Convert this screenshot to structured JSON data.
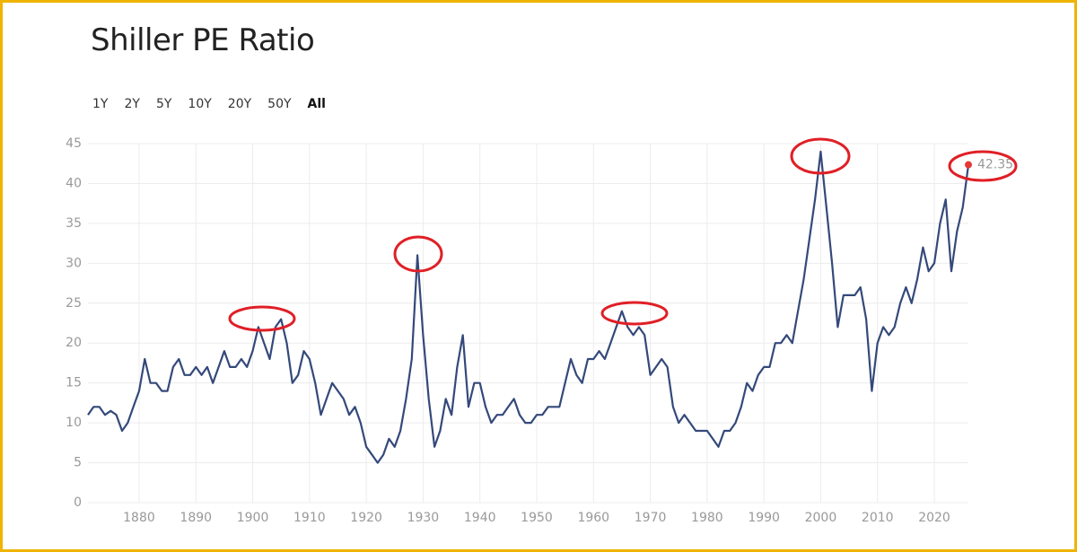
{
  "chart_data": {
    "type": "line",
    "title": "Shiller PE Ratio",
    "range_buttons": [
      "1Y",
      "2Y",
      "5Y",
      "10Y",
      "20Y",
      "50Y",
      "All"
    ],
    "selected_range": "All",
    "x": [
      1871,
      1872,
      1873,
      1874,
      1875,
      1876,
      1877,
      1878,
      1879,
      1880,
      1881,
      1882,
      1883,
      1884,
      1885,
      1886,
      1887,
      1888,
      1889,
      1890,
      1891,
      1892,
      1893,
      1894,
      1895,
      1896,
      1897,
      1898,
      1899,
      1900,
      1901,
      1902,
      1903,
      1904,
      1905,
      1906,
      1907,
      1908,
      1909,
      1910,
      1911,
      1912,
      1913,
      1914,
      1915,
      1916,
      1917,
      1918,
      1919,
      1920,
      1921,
      1922,
      1923,
      1924,
      1925,
      1926,
      1927,
      1928,
      1929,
      1930,
      1931,
      1932,
      1933,
      1934,
      1935,
      1936,
      1937,
      1938,
      1939,
      1940,
      1941,
      1942,
      1943,
      1944,
      1945,
      1946,
      1947,
      1948,
      1949,
      1950,
      1951,
      1952,
      1953,
      1954,
      1955,
      1956,
      1957,
      1958,
      1959,
      1960,
      1961,
      1962,
      1963,
      1964,
      1965,
      1966,
      1967,
      1968,
      1969,
      1970,
      1971,
      1972,
      1973,
      1974,
      1975,
      1976,
      1977,
      1978,
      1979,
      1980,
      1981,
      1982,
      1983,
      1984,
      1985,
      1986,
      1987,
      1988,
      1989,
      1990,
      1991,
      1992,
      1993,
      1994,
      1995,
      1996,
      1997,
      1998,
      1999,
      2000,
      2001,
      2002,
      2003,
      2004,
      2005,
      2006,
      2007,
      2008,
      2009,
      2010,
      2011,
      2012,
      2013,
      2014,
      2015,
      2016,
      2017,
      2018,
      2019,
      2020,
      2021,
      2022,
      2023,
      2024,
      2025,
      2026
    ],
    "values": [
      11,
      12,
      12,
      11,
      11.5,
      11,
      9,
      10,
      12,
      14,
      18,
      15,
      15,
      14,
      14,
      17,
      18,
      16,
      16,
      17,
      16,
      17,
      15,
      17,
      19,
      17,
      17,
      18,
      17,
      19,
      22,
      20,
      18,
      22,
      23,
      20,
      15,
      16,
      19,
      18,
      15,
      11,
      13,
      15,
      14,
      13,
      11,
      12,
      10,
      7,
      6,
      5,
      6,
      8,
      7,
      9,
      13,
      18,
      31,
      21,
      13,
      7,
      9,
      13,
      11,
      17,
      21,
      12,
      15,
      15,
      12,
      10,
      11,
      11,
      12,
      13,
      11,
      10,
      10,
      11,
      11,
      12,
      12,
      12,
      15,
      18,
      16,
      15,
      18,
      18,
      19,
      18,
      20,
      22,
      24,
      22,
      21,
      22,
      21,
      16,
      17,
      18,
      17,
      12,
      10,
      11,
      10,
      9,
      9,
      9,
      8,
      7,
      9,
      9,
      10,
      12,
      15,
      14,
      16,
      17,
      17,
      20,
      20,
      21,
      20,
      24,
      28,
      33,
      38,
      44,
      37,
      30,
      22,
      26,
      26,
      26,
      27,
      23,
      14,
      20,
      22,
      21,
      22,
      25,
      27,
      25,
      28,
      32,
      29,
      30,
      35,
      38,
      29,
      34,
      37,
      42.35
    ],
    "color": "#34497a",
    "end_color": "#e53935",
    "xlim": [
      1871,
      2026
    ],
    "ylim": [
      0,
      45
    ],
    "xticks": [
      1880,
      1890,
      1900,
      1910,
      1920,
      1930,
      1940,
      1950,
      1960,
      1970,
      1980,
      1990,
      2000,
      2010,
      2020
    ],
    "yticks": [
      0,
      5,
      10,
      15,
      20,
      25,
      30,
      35,
      40,
      45
    ],
    "grid": true
  }
}
